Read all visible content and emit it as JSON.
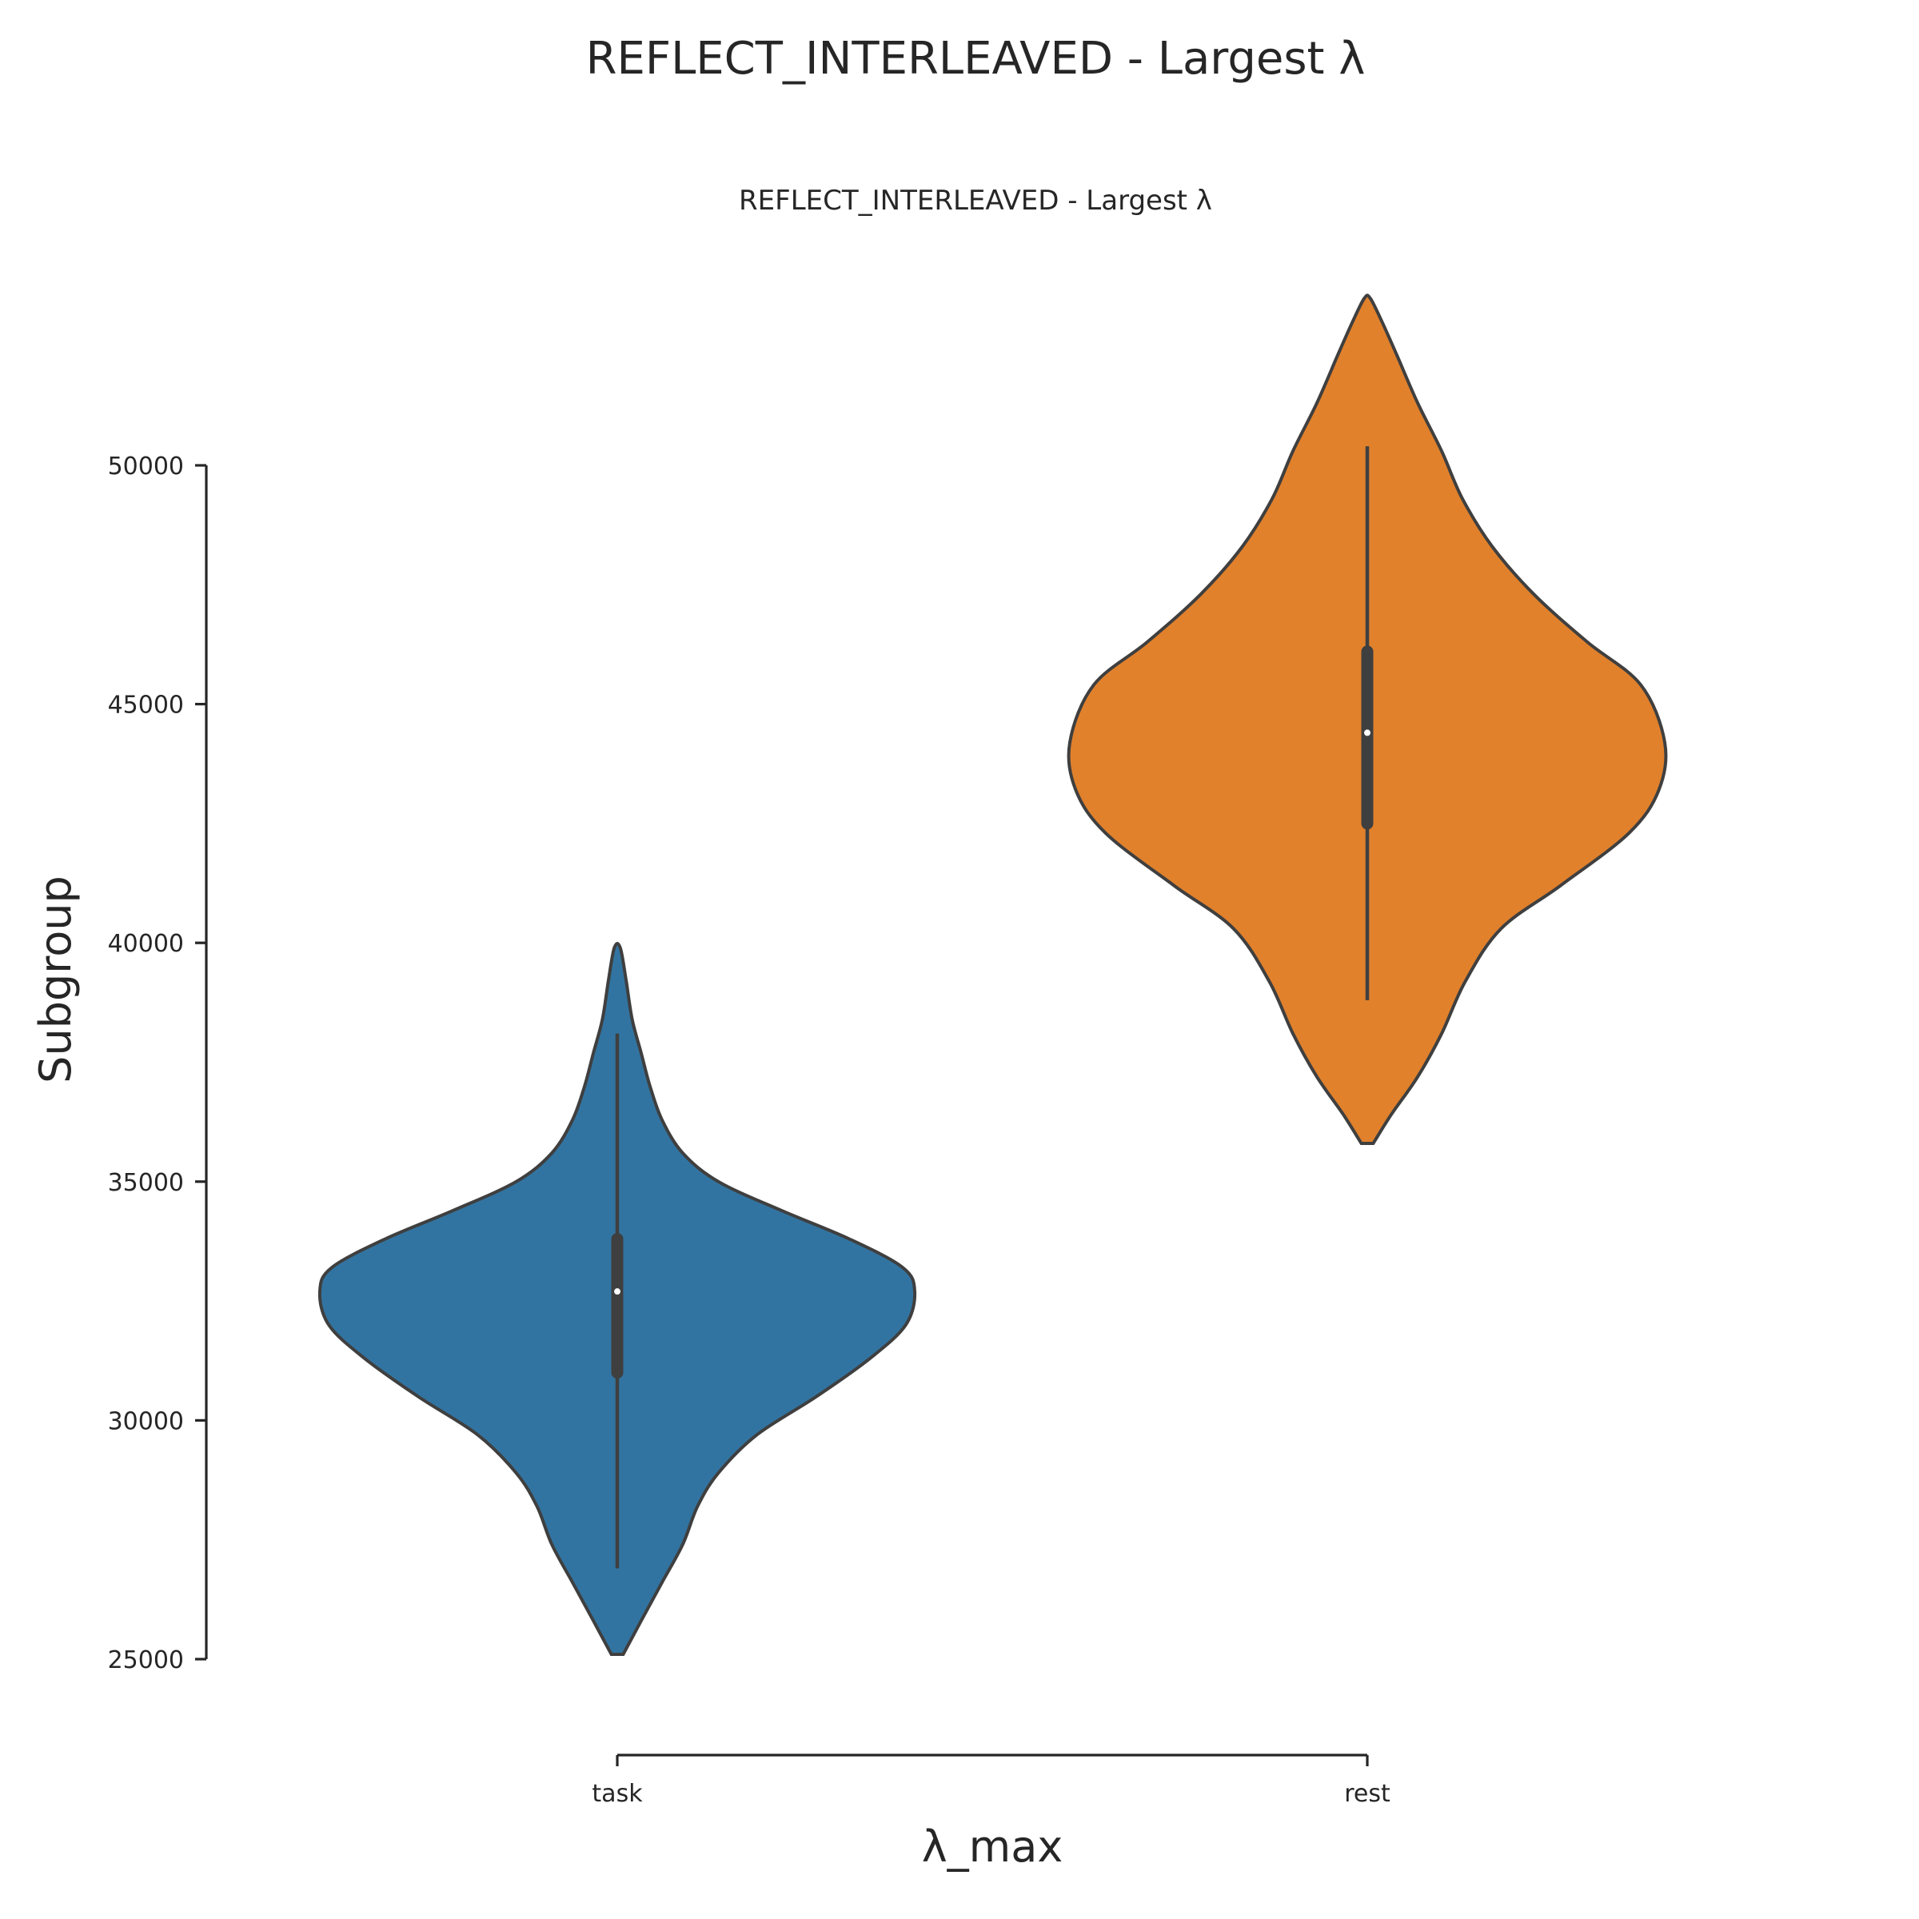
{
  "figure": {
    "suptitle": "REFLECT_INTERLEAVED - Largest λ"
  },
  "chart_data": {
    "type": "violin",
    "title": "REFLECT_INTERLEAVED - Largest λ",
    "xlabel": "λ_max",
    "ylabel": "Subgroup",
    "categories": [
      "task",
      "rest"
    ],
    "ylim": [
      25000,
      50000
    ],
    "yticks": [
      25000,
      30000,
      35000,
      40000,
      45000,
      50000
    ],
    "ytick_labels": [
      "25000",
      "30000",
      "35000",
      "40000",
      "45000",
      "50000"
    ],
    "grid": false,
    "legend": "none",
    "violins": [
      {
        "category": "task",
        "color": "#3274a1",
        "min": 26900,
        "q1": 31000,
        "median": 32700,
        "q3": 33800,
        "max": 38100,
        "kde_extent": [
          25100,
          39900
        ],
        "density": [
          [
            25100,
            0.02
          ],
          [
            25800,
            0.08
          ],
          [
            26600,
            0.15
          ],
          [
            27400,
            0.22
          ],
          [
            28200,
            0.27
          ],
          [
            28900,
            0.34
          ],
          [
            29700,
            0.47
          ],
          [
            30500,
            0.67
          ],
          [
            31300,
            0.85
          ],
          [
            32000,
            0.97
          ],
          [
            32700,
            1.0
          ],
          [
            33200,
            0.96
          ],
          [
            33800,
            0.78
          ],
          [
            34400,
            0.55
          ],
          [
            35000,
            0.34
          ],
          [
            35600,
            0.22
          ],
          [
            36300,
            0.15
          ],
          [
            37000,
            0.11
          ],
          [
            37700,
            0.08
          ],
          [
            38400,
            0.05
          ],
          [
            39200,
            0.03
          ],
          [
            39900,
            0.01
          ]
        ]
      },
      {
        "category": "rest",
        "color": "#e1812c",
        "min": 38800,
        "q1": 42500,
        "median": 44400,
        "q3": 46100,
        "max": 50400,
        "kde_extent": [
          35800,
          53500
        ],
        "density": [
          [
            35800,
            0.02
          ],
          [
            36400,
            0.08
          ],
          [
            37200,
            0.17
          ],
          [
            38100,
            0.25
          ],
          [
            39200,
            0.33
          ],
          [
            40300,
            0.45
          ],
          [
            41200,
            0.65
          ],
          [
            42300,
            0.88
          ],
          [
            43200,
            0.98
          ],
          [
            44200,
            1.0
          ],
          [
            45400,
            0.92
          ],
          [
            46300,
            0.74
          ],
          [
            47300,
            0.56
          ],
          [
            48300,
            0.42
          ],
          [
            49300,
            0.32
          ],
          [
            50300,
            0.25
          ],
          [
            51300,
            0.17
          ],
          [
            52300,
            0.1
          ],
          [
            53000,
            0.05
          ],
          [
            53500,
            0.01
          ]
        ]
      }
    ]
  }
}
